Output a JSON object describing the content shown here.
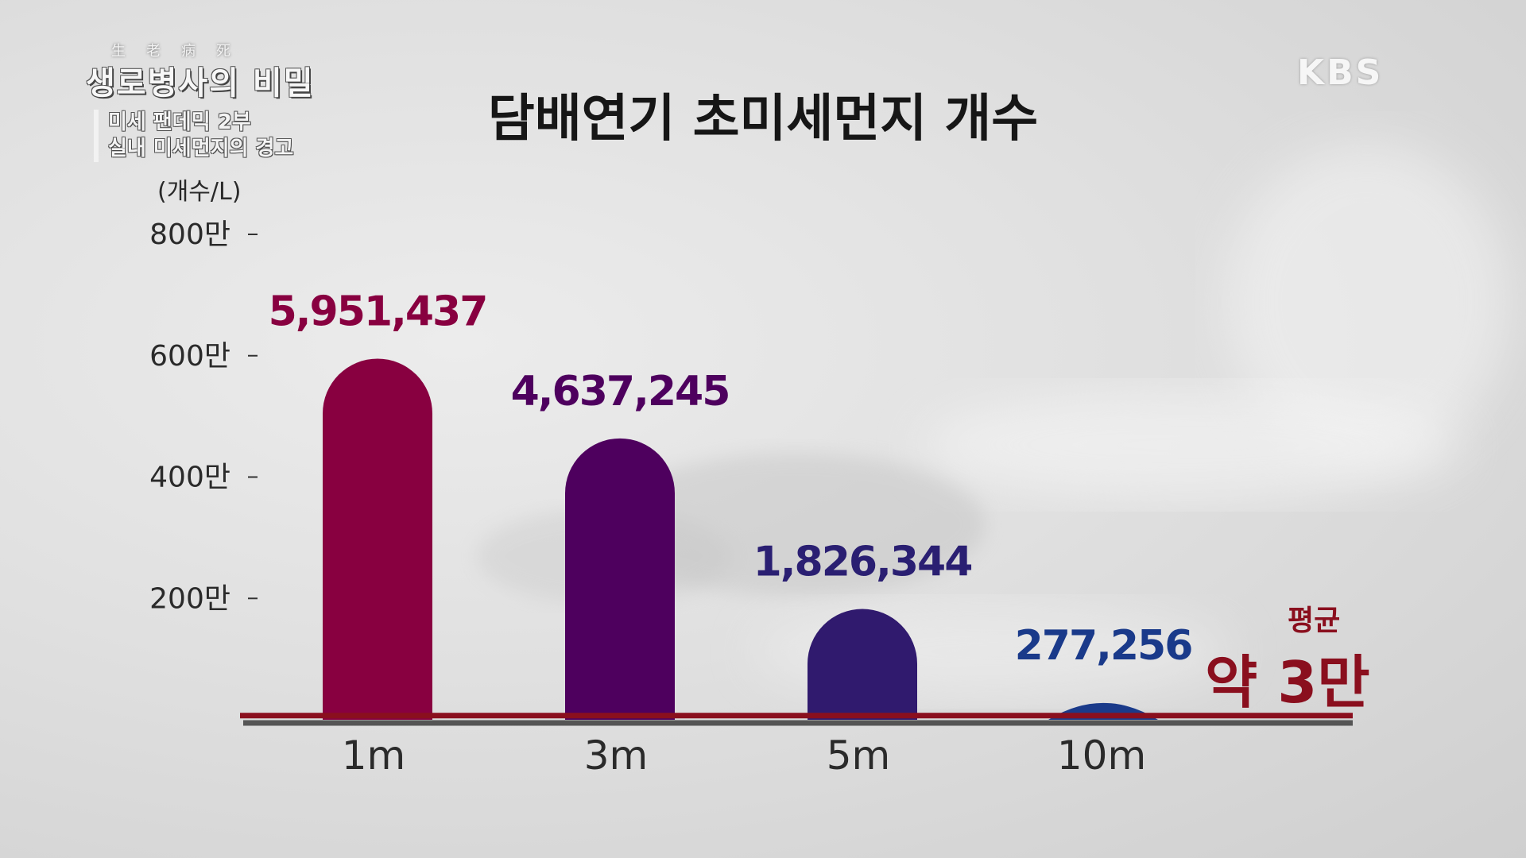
{
  "program": {
    "hanja": "生老病死",
    "title": "생로병사의 비밀",
    "episode_line1": "미세 팬데믹 2부",
    "episode_line2": "실내 미세먼지의 경고"
  },
  "broadcaster": "KBS",
  "average": {
    "label": "평균",
    "value": "약 3만",
    "color": "#8a0f1e"
  },
  "chart_data": {
    "type": "bar",
    "title": "담배연기 초미세먼지 개수",
    "ylabel": "(개수/L)",
    "xlabel": "",
    "ylim": [
      0,
      8000000
    ],
    "yticks": [
      {
        "value": 2000000,
        "label": "200만"
      },
      {
        "value": 4000000,
        "label": "400만"
      },
      {
        "value": 6000000,
        "label": "600만"
      },
      {
        "value": 8000000,
        "label": "800만"
      }
    ],
    "categories": [
      "1m",
      "3m",
      "5m",
      "10m"
    ],
    "values": [
      5951437,
      4637245,
      1826344,
      277256
    ],
    "value_labels": [
      "5,951,437",
      "4,637,245",
      "1,826,344",
      "277,256"
    ],
    "colors": [
      "#880040",
      "#4e005e",
      "#301a6e",
      "#1a3a8a"
    ],
    "reference_line": {
      "value": 30000,
      "color": "#8a0f1e"
    },
    "grid": false,
    "legend": "none"
  }
}
